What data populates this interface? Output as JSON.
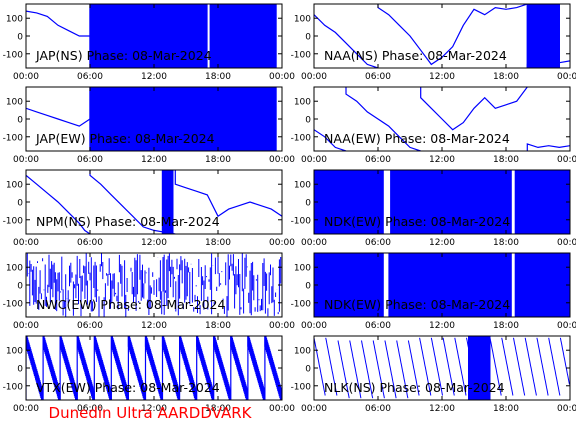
{
  "footer": "Dunedin Ultra AARDDVARK",
  "colors": {
    "trace": "#0000ff",
    "axes": "#000000",
    "footer": "#ff0000",
    "background": "#ffffff"
  },
  "chart_data": [
    {
      "type": "line",
      "title": "JAP(NS) Phase: 08-Mar-2024",
      "x_ticks": [
        "00:00",
        "06:00",
        "12:00",
        "18:00",
        "00:00"
      ],
      "y_ticks": [
        100,
        0,
        -100
      ],
      "ylim": [
        -180,
        180
      ],
      "series": [
        {
          "style": "noisy-band",
          "x": [
            0,
            1,
            2,
            3,
            4,
            5,
            6,
            24
          ],
          "y": [
            140,
            130,
            110,
            60,
            30,
            0,
            0,
            0
          ],
          "band_from": 6,
          "band_to": 23.5,
          "gaps": [
            5,
            5.3,
            17,
            17.2
          ]
        }
      ]
    },
    {
      "type": "line",
      "title": "NAA(NS) Phase: 08-Mar-2024",
      "x_ticks": [
        "00:00",
        "06:00",
        "12:00",
        "18:00",
        "00:00"
      ],
      "y_ticks": [
        100,
        0,
        -100
      ],
      "ylim": [
        -180,
        180
      ],
      "series": [
        {
          "style": "line",
          "x": [
            0,
            1,
            2,
            3,
            4,
            5,
            6,
            7,
            8,
            9,
            10,
            11,
            12,
            13,
            14,
            15,
            16,
            17,
            18,
            19,
            20,
            21,
            22,
            23,
            24
          ],
          "y": [
            120,
            60,
            20,
            -40,
            -100,
            -160,
            160,
            120,
            60,
            0,
            -80,
            -160,
            -120,
            -60,
            60,
            150,
            120,
            160,
            150,
            160,
            -160,
            -170,
            -160,
            -150,
            -140
          ],
          "band_from": 20,
          "band_to": 23,
          "gaps": []
        }
      ]
    },
    {
      "type": "line",
      "title": "JAP(EW) Phase: 08-Mar-2024",
      "x_ticks": [
        "00:00",
        "06:00",
        "12:00",
        "18:00",
        "00:00"
      ],
      "y_ticks": [
        100,
        0,
        -100
      ],
      "ylim": [
        -180,
        180
      ],
      "series": [
        {
          "style": "noisy-band",
          "x": [
            0,
            1,
            2,
            3,
            4,
            5,
            6,
            24
          ],
          "y": [
            60,
            40,
            20,
            0,
            -20,
            -40,
            0,
            0
          ],
          "band_from": 6,
          "band_to": 23.5,
          "gaps": [
            5,
            5.4
          ]
        }
      ]
    },
    {
      "type": "line",
      "title": "NAA(EW) Phase: 08-Mar-2024",
      "x_ticks": [
        "00:00",
        "06:00",
        "12:00",
        "18:00",
        "00:00"
      ],
      "y_ticks": [
        100,
        0,
        -100
      ],
      "ylim": [
        -180,
        180
      ],
      "series": [
        {
          "style": "line",
          "x": [
            0,
            1,
            2,
            3,
            4,
            5,
            6,
            7,
            8,
            9,
            10,
            11,
            12,
            13,
            14,
            15,
            16,
            17,
            18,
            19,
            20,
            21,
            22,
            23,
            24
          ],
          "y": [
            -60,
            -100,
            -160,
            140,
            100,
            40,
            0,
            -40,
            -100,
            -160,
            120,
            60,
            0,
            -60,
            -20,
            60,
            120,
            60,
            80,
            100,
            -140,
            -160,
            -150,
            -160,
            -150
          ],
          "band_from": null,
          "band_to": null,
          "gaps": []
        }
      ]
    },
    {
      "type": "line",
      "title": "NPM(NS) Phase: 08-Mar-2024",
      "x_ticks": [
        "00:00",
        "06:00",
        "12:00",
        "18:00",
        "00:00"
      ],
      "y_ticks": [
        100,
        0,
        -100
      ],
      "ylim": [
        -180,
        180
      ],
      "series": [
        {
          "style": "line",
          "x": [
            0,
            1,
            2,
            3,
            4,
            5,
            5.5,
            6,
            7,
            8,
            9,
            10,
            11,
            12,
            13,
            14,
            15,
            16,
            17,
            18,
            19,
            20,
            21,
            22,
            23,
            24
          ],
          "y": [
            150,
            100,
            50,
            0,
            -60,
            -120,
            -160,
            150,
            100,
            40,
            -20,
            -80,
            -140,
            -160,
            -170,
            100,
            80,
            60,
            40,
            -80,
            -40,
            -20,
            0,
            -20,
            -40,
            -80
          ],
          "band_from": 12.8,
          "band_to": 13.8,
          "gaps": []
        }
      ]
    },
    {
      "type": "line",
      "title": "NDK(EW) Phase: 08-Mar-2024",
      "x_ticks": [
        "00:00",
        "06:00",
        "12:00",
        "18:00",
        "00:00"
      ],
      "y_ticks": [
        100,
        0,
        -100
      ],
      "ylim": [
        -180,
        180
      ],
      "series": [
        {
          "style": "solid-band",
          "x": [
            0,
            24
          ],
          "y": [
            0,
            0
          ],
          "band_from": 0,
          "band_to": 24,
          "gaps": [
            6.5,
            7.2,
            18.5,
            18.8
          ]
        }
      ]
    },
    {
      "type": "line",
      "title": "NWC(EW) Phase: 08-Mar-2024",
      "x_ticks": [
        "00:00",
        "06:00",
        "12:00",
        "18:00",
        "00:00"
      ],
      "y_ticks": [
        100,
        0,
        -100
      ],
      "ylim": [
        -180,
        180
      ],
      "series": [
        {
          "style": "random-vertical",
          "x": [
            0,
            24
          ],
          "y": [
            0,
            0
          ],
          "band_from": 0,
          "band_to": 24,
          "gaps": []
        }
      ]
    },
    {
      "type": "line",
      "title": "NDK(EW) Phase: 08-Mar-2024",
      "x_ticks": [
        "00:00",
        "06:00",
        "12:00",
        "18:00",
        "00:00"
      ],
      "y_ticks": [
        100,
        0,
        -100
      ],
      "ylim": [
        -180,
        180
      ],
      "series": [
        {
          "style": "solid-band",
          "x": [
            0,
            24
          ],
          "y": [
            0,
            0
          ],
          "band_from": 0,
          "band_to": 24,
          "gaps": [
            6.5,
            7.0,
            18.5,
            18.8
          ]
        }
      ]
    },
    {
      "type": "line",
      "title": "VTX(EW) Phase: 08-Mar-2024",
      "x_ticks": [
        "00:00",
        "06:00",
        "12:00",
        "18:00",
        "00:00"
      ],
      "y_ticks": [
        100,
        0,
        -100
      ],
      "ylim": [
        -180,
        180
      ],
      "series": [
        {
          "style": "sawtooth-band",
          "x": [
            0,
            24
          ],
          "y": [
            0,
            0
          ],
          "band_from": 0,
          "band_to": 24,
          "gaps": []
        }
      ]
    },
    {
      "type": "line",
      "title": "NLK(NS) Phase: 08-Mar-2024",
      "x_ticks": [
        "00:00",
        "06:00",
        "12:00",
        "18:00",
        "00:00"
      ],
      "y_ticks": [
        100,
        0,
        -100
      ],
      "ylim": [
        -180,
        180
      ],
      "series": [
        {
          "style": "sawtooth",
          "x": [
            0,
            24
          ],
          "y": [
            0,
            0
          ],
          "band_from": 14.5,
          "band_to": 16.5,
          "gaps": []
        }
      ]
    }
  ]
}
